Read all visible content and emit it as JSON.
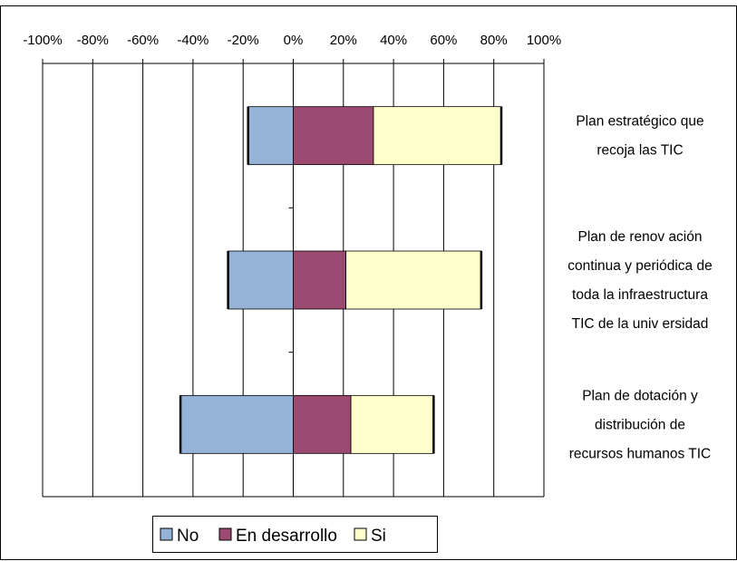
{
  "chart_data": {
    "type": "bar",
    "orientation": "horizontal",
    "stacked": true,
    "title": "",
    "xlabel": "",
    "ylabel": "",
    "xlim": [
      -100,
      100
    ],
    "x_ticks": [
      "-100%",
      "-80%",
      "-60%",
      "-40%",
      "-20%",
      "0%",
      "20%",
      "40%",
      "60%",
      "80%",
      "100%"
    ],
    "x_axis_position": "top",
    "grid": "vertical",
    "legend_position": "bottom",
    "categories": [
      "Plan estratégico que recoja las TIC",
      "Plan de renovación continua y periódica de toda la infraestructura TIC de la universidad",
      "Plan de dotación y distribución de recursos humanos TIC"
    ],
    "category_label_lines": [
      [
        "Plan estratégico que",
        "recoja las TIC"
      ],
      [
        "Plan de renov ación",
        "continua y periódica de",
        "toda la infraestructura",
        "TIC de la univ ersidad"
      ],
      [
        "Plan de dotación y",
        "distribución de",
        "recursos humanos TIC"
      ]
    ],
    "series": [
      {
        "name": "No",
        "color": "#95b3d7",
        "values": [
          -18,
          -26,
          -45
        ]
      },
      {
        "name": "En desarrollo",
        "color": "#9c4a72",
        "values": [
          32,
          21,
          23
        ]
      },
      {
        "name": "Si",
        "color": "#ffffcc",
        "values": [
          51,
          54,
          33
        ]
      }
    ]
  }
}
